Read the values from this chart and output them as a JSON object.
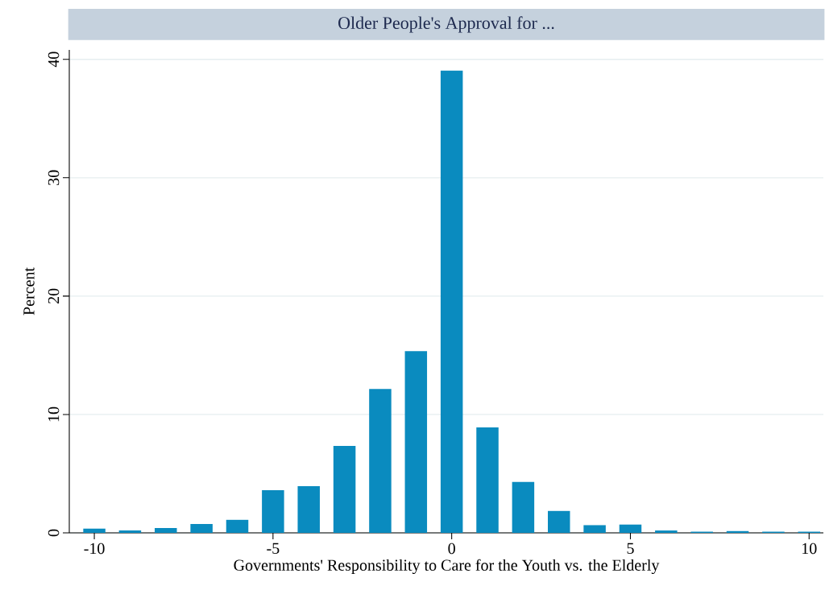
{
  "chart_data": {
    "type": "bar",
    "title": "Older People's Approval for ...",
    "xlabel": "Governments' Responsibility to Care for the Youth vs. the Elderly",
    "ylabel": "Percent",
    "x": [
      -10,
      -9,
      -8,
      -7,
      -6,
      -5,
      -4,
      -3,
      -2,
      -1,
      0,
      1,
      2,
      3,
      4,
      5,
      6,
      7,
      8,
      9,
      10
    ],
    "values": [
      0.35,
      0.2,
      0.4,
      0.75,
      1.1,
      3.6,
      3.95,
      7.35,
      12.15,
      15.35,
      39.05,
      8.9,
      4.3,
      1.85,
      0.65,
      0.7,
      0.2,
      0.1,
      0.15,
      0.1,
      0.1
    ],
    "color": "#0a8bbf",
    "xlim": [
      -10.7,
      10.4
    ],
    "ylim": [
      0,
      40.8
    ],
    "xticks": [
      -10,
      -5,
      0,
      5,
      10
    ],
    "yticks": [
      0,
      10,
      20,
      30,
      40
    ],
    "grid": "y"
  }
}
